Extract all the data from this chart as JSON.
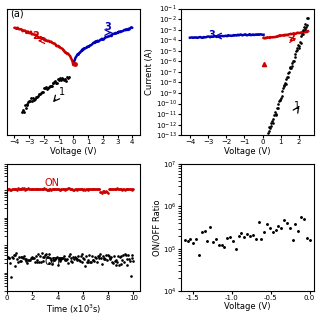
{
  "colors": {
    "red": "#cc0000",
    "blue": "#0000bb",
    "black": "#000000"
  },
  "panel_a": {
    "xlabel": "Voltage (V)",
    "xlim": [
      -4.5,
      4.5
    ],
    "xticks": [
      -4,
      -3,
      -2,
      -1,
      0,
      1,
      2,
      3,
      4
    ]
  },
  "panel_b": {
    "xlabel": "Voltage (V)",
    "ylabel": "Current (A)",
    "xlim": [
      -4.5,
      2.8
    ],
    "ylim": [
      1e-13,
      0.1
    ],
    "xticks": [
      -4,
      -3,
      -2,
      -1,
      0,
      1,
      2
    ]
  },
  "panel_c": {
    "xlabel": "Time (x10³s)",
    "xlim": [
      0,
      10000
    ],
    "xticks": [
      0,
      2000,
      4000,
      6000,
      8000,
      10000
    ],
    "xticklabels": [
      "0",
      "2",
      "4",
      "6",
      "8",
      "10"
    ]
  },
  "panel_d": {
    "xlabel": "Voltage (V)",
    "ylabel": "ON/OFF Ratio",
    "ylim": [
      10000.0,
      10000000.0
    ],
    "xticks": [
      0.0,
      -0.5,
      -1.0,
      -1.5
    ]
  }
}
